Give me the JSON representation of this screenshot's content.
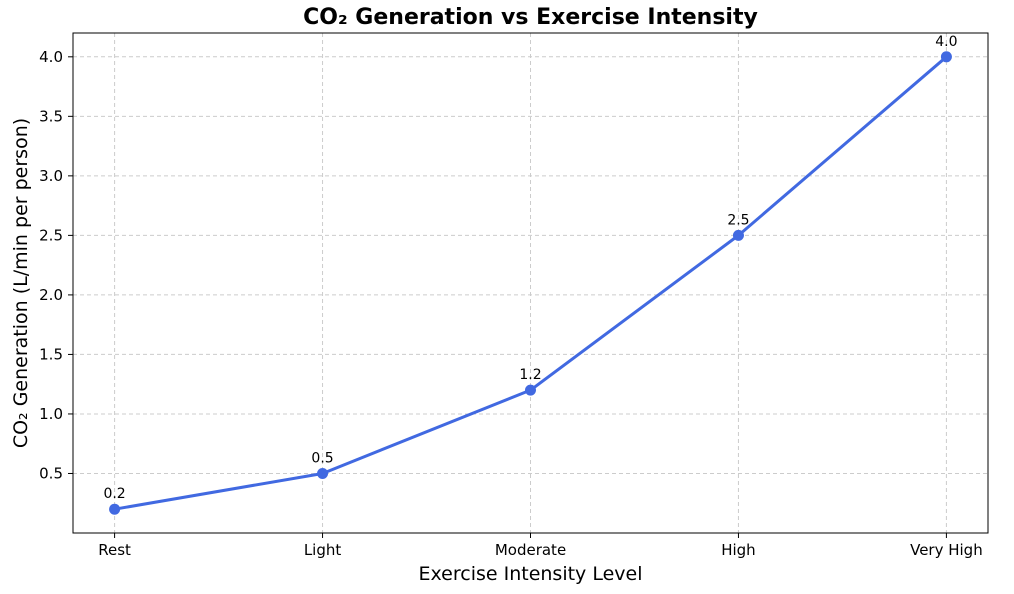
{
  "chart_data": {
    "type": "line",
    "title": "CO₂ Generation vs Exercise Intensity",
    "xlabel": "Exercise Intensity Level",
    "ylabel": "CO₂ Generation (L/min per person)",
    "categories": [
      "Rest",
      "Light",
      "Moderate",
      "High",
      "Very High"
    ],
    "values": [
      0.2,
      0.5,
      1.2,
      2.5,
      4.0
    ],
    "data_labels": [
      "0.2",
      "0.5",
      "1.2",
      "2.5",
      "4.0"
    ],
    "yticks": [
      0.5,
      1.0,
      1.5,
      2.0,
      2.5,
      3.0,
      3.5,
      4.0
    ],
    "ylim": [
      0,
      4.2
    ],
    "xlim": [
      -0.2,
      4.2
    ],
    "grid": true,
    "grid_style": "dashed",
    "legend": "none",
    "line_color": "#4169E1",
    "marker": "circle",
    "grid_color": "#cccccc",
    "spine_color": "#000000",
    "text_color": "#000000",
    "background_color": "#ffffff"
  }
}
